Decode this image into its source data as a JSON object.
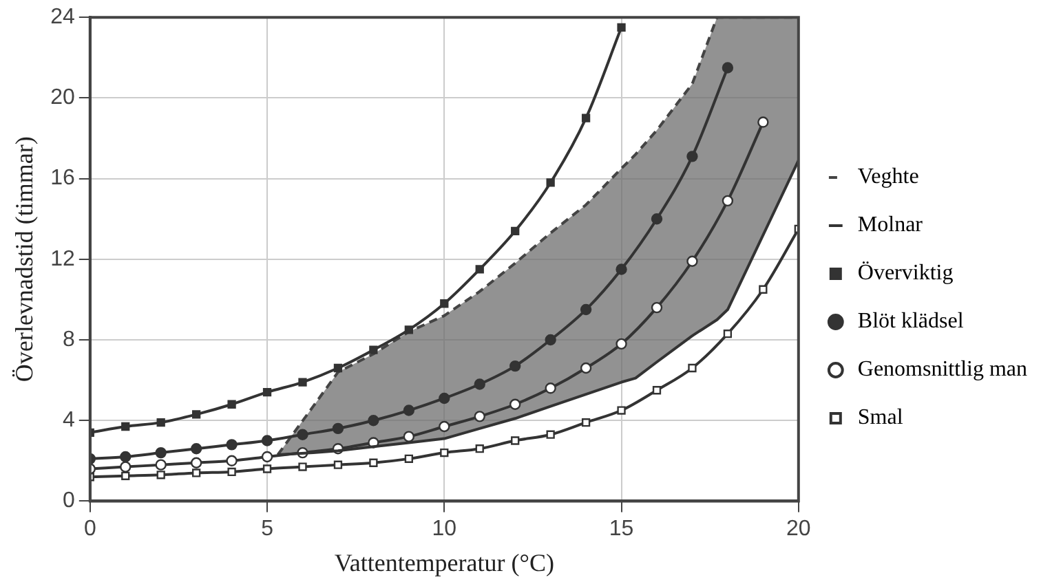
{
  "chart_data": {
    "type": "line",
    "xlabel": "Vattentemperatur (°C)",
    "ylabel": "Överlevnadstid (timmar)",
    "xlim": [
      0,
      20
    ],
    "xticks": [
      0,
      5,
      10,
      15,
      20
    ],
    "ylim": [
      0,
      24
    ],
    "yticks": [
      0,
      4,
      8,
      12,
      16,
      20,
      24
    ],
    "grid": true,
    "legend": "right",
    "series": [
      {
        "name": "Veghte",
        "type": "area",
        "color": "#444444",
        "line_style": "dashed",
        "marker": "none",
        "x": [
          5.3,
          6.3,
          7,
          8,
          9,
          10,
          11,
          12,
          13,
          14,
          15,
          15.4,
          16,
          17,
          17.7,
          18,
          20
        ],
        "values": [
          2.3,
          4.7,
          6.4,
          7.3,
          8.4,
          9.2,
          10.4,
          11.8,
          13.3,
          14.7,
          16.5,
          17.2,
          18.4,
          20.7,
          24,
          24,
          24
        ]
      },
      {
        "name": "Molnar",
        "color": "#333333",
        "line_style": "solid",
        "marker": "none",
        "x": [
          5.3,
          6.3,
          7,
          8,
          9,
          10,
          11,
          12,
          13,
          14,
          15,
          15.4,
          16,
          17,
          17.7,
          18,
          20
        ],
        "values": [
          2.3,
          2.4,
          2.5,
          2.7,
          2.9,
          3.1,
          3.6,
          4.1,
          4.7,
          5.3,
          5.9,
          6.1,
          6.9,
          8.2,
          9.0,
          9.5,
          16.9
        ]
      },
      {
        "name": "Överviktig",
        "color": "#333333",
        "line_style": "solid",
        "marker": "square",
        "x": [
          0,
          1,
          2,
          3,
          4,
          5,
          6,
          7,
          8,
          9,
          10,
          11,
          12,
          13,
          14,
          15
        ],
        "values": [
          3.4,
          3.7,
          3.9,
          4.3,
          4.8,
          5.4,
          5.9,
          6.6,
          7.5,
          8.5,
          9.8,
          11.5,
          13.4,
          15.8,
          19.0,
          23.5
        ]
      },
      {
        "name": "Blöt klädsel",
        "color": "#333333",
        "line_style": "solid",
        "marker": "circle",
        "x": [
          0,
          1,
          2,
          3,
          4,
          5,
          6,
          7,
          8,
          9,
          10,
          11,
          12,
          13,
          14,
          15,
          16,
          17,
          18
        ],
        "values": [
          2.1,
          2.2,
          2.4,
          2.6,
          2.8,
          3.0,
          3.3,
          3.6,
          4.0,
          4.5,
          5.1,
          5.8,
          6.7,
          8.0,
          9.5,
          11.5,
          14.0,
          17.1,
          21.5
        ]
      },
      {
        "name": "Genomsnittlig man",
        "color": "#ffffff",
        "line_style": "solid",
        "marker": "circle",
        "x": [
          0,
          1,
          2,
          3,
          4,
          5,
          6,
          7,
          8,
          9,
          10,
          11,
          12,
          13,
          14,
          15,
          16,
          17,
          18,
          19
        ],
        "values": [
          1.6,
          1.7,
          1.8,
          1.9,
          2.0,
          2.2,
          2.4,
          2.6,
          2.9,
          3.2,
          3.7,
          4.2,
          4.8,
          5.6,
          6.6,
          7.8,
          9.6,
          11.9,
          14.9,
          18.8
        ]
      },
      {
        "name": "Smal",
        "color": "#ffffff",
        "line_style": "solid",
        "marker": "square",
        "x": [
          0,
          1,
          2,
          3,
          4,
          5,
          6,
          7,
          8,
          9,
          10,
          11,
          12,
          13,
          14,
          15,
          16,
          17,
          18,
          19,
          20
        ],
        "values": [
          1.2,
          1.25,
          1.3,
          1.4,
          1.45,
          1.6,
          1.7,
          1.8,
          1.9,
          2.1,
          2.4,
          2.6,
          3.0,
          3.3,
          3.9,
          4.5,
          5.5,
          6.6,
          8.3,
          10.5,
          13.5
        ]
      }
    ]
  }
}
